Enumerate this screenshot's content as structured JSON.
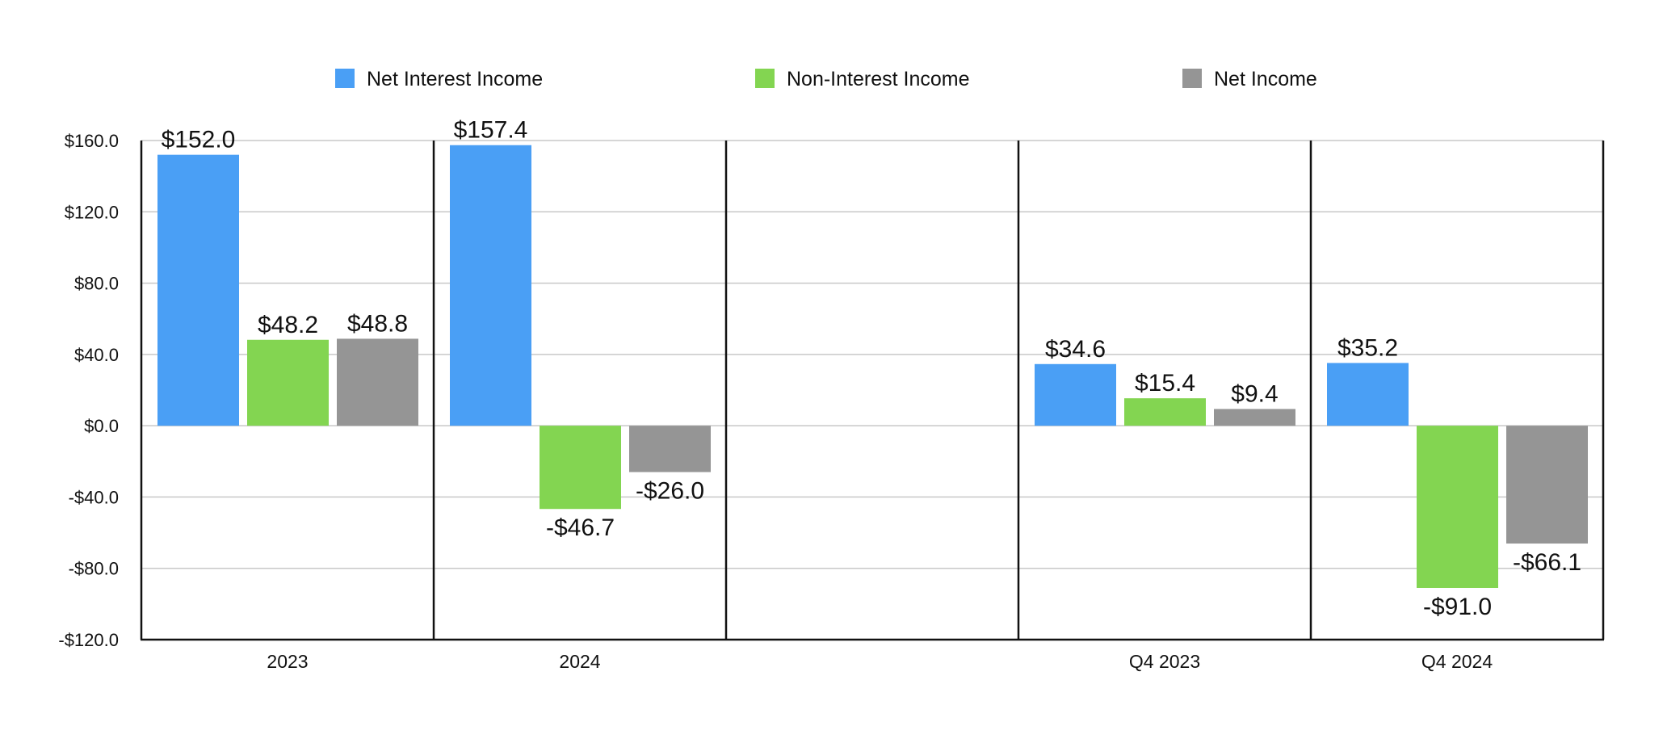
{
  "chart_data": {
    "type": "bar",
    "categories": [
      "2023",
      "2024",
      "",
      "Q4 2023",
      "Q4 2024"
    ],
    "series": [
      {
        "name": "Net Interest Income",
        "color": "#4A9FF5",
        "values": [
          152.0,
          157.4,
          null,
          34.6,
          35.2
        ],
        "labels": [
          "$152.0",
          "$157.4",
          "",
          "$34.6",
          "$35.2"
        ]
      },
      {
        "name": "Non-Interest Income",
        "color": "#83D551",
        "values": [
          48.2,
          -46.7,
          null,
          15.4,
          -91.0
        ],
        "labels": [
          "$48.2",
          "-$46.7",
          "",
          "$15.4",
          "-$91.0"
        ]
      },
      {
        "name": "Net Income",
        "color": "#959595",
        "values": [
          48.8,
          -26.0,
          null,
          9.4,
          -66.1
        ],
        "labels": [
          "$48.8",
          "-$26.0",
          "",
          "$9.4",
          "-$66.1"
        ]
      }
    ],
    "ylim": [
      -120,
      160
    ],
    "yticks": [
      160,
      120,
      80,
      40,
      0,
      -40,
      -80,
      -120
    ],
    "ytick_labels": [
      "$160.0",
      "$120.0",
      "$80.0",
      "$40.0",
      "$0.0",
      "-$40.0",
      "-$80.0",
      "-$120.0"
    ],
    "grid": true,
    "legend_position": "top",
    "title": "",
    "xlabel": "",
    "ylabel": ""
  }
}
